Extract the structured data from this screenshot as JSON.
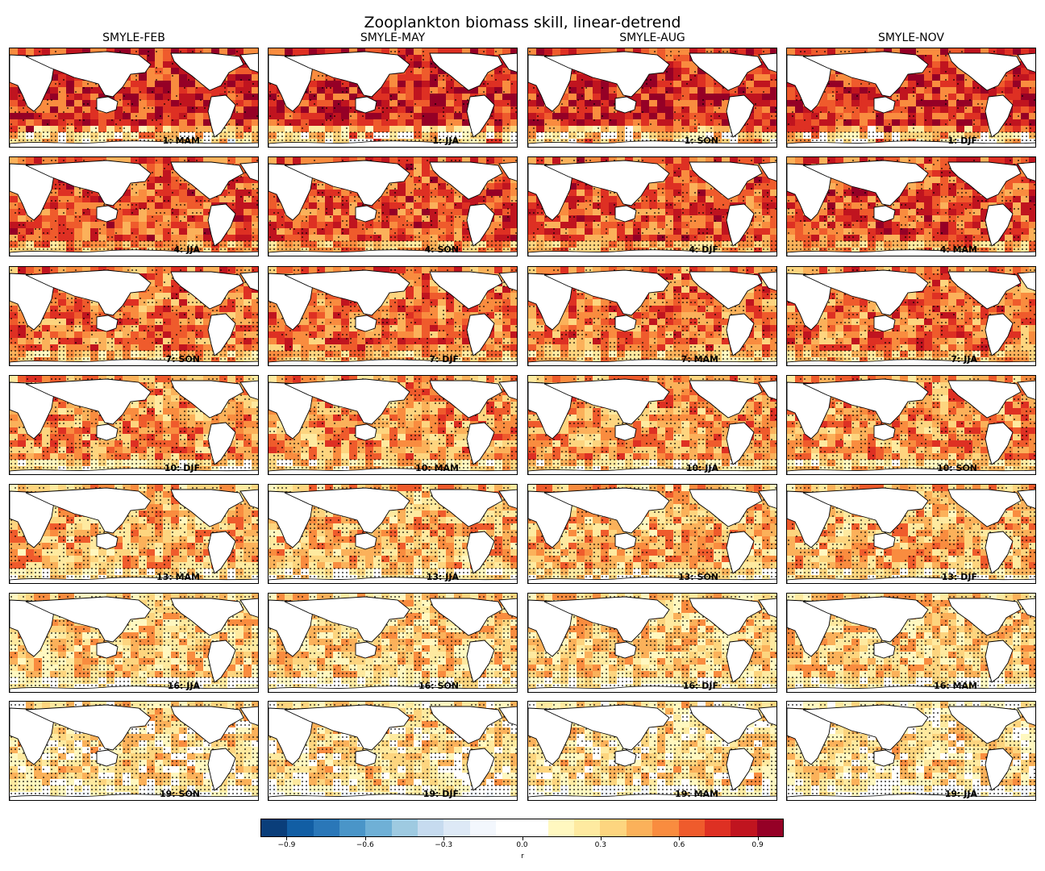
{
  "figure": {
    "title": "Zooplankton biomass skill, linear-detrend"
  },
  "columns": [
    "SMYLE-FEB",
    "SMYLE-MAY",
    "SMYLE-AUG",
    "SMYLE-NOV"
  ],
  "chart_data": {
    "type": "heatmap",
    "title": "Zooplankton biomass skill, linear-detrend",
    "description_variable": "r",
    "colorbar": {
      "label": "r",
      "vmin": -1.0,
      "vmax": 1.0,
      "levels": [
        -1.0,
        -0.9,
        -0.8,
        -0.7,
        -0.6,
        -0.5,
        -0.4,
        -0.3,
        -0.2,
        -0.1,
        0.0,
        0.1,
        0.2,
        0.3,
        0.4,
        0.5,
        0.6,
        0.7,
        0.8,
        0.9,
        1.0
      ],
      "colors": [
        "#0a3e7a",
        "#125ea4",
        "#2a77b8",
        "#4a95c8",
        "#6fb0d6",
        "#9ecae1",
        "#c6dbef",
        "#dde9f6",
        "#f3f7fd",
        "#ffffff",
        "#ffffff",
        "#fff8c0",
        "#feeaa0",
        "#fdd57f",
        "#fbb15a",
        "#f98c3f",
        "#ef5b2c",
        "#de3023",
        "#c0141f",
        "#950026"
      ],
      "ticks": [
        -0.9,
        -0.6,
        -0.3,
        0.0,
        0.3,
        0.6,
        0.9
      ],
      "tick_labels": [
        "−0.9",
        "−0.6",
        "−0.3",
        "0.0",
        "0.3",
        "0.6",
        "0.9"
      ]
    },
    "panels": [
      [
        "1: MAM",
        "1: JJA",
        "1: SON",
        "1: DJF"
      ],
      [
        "4: JJA",
        "4: SON",
        "4: DJF",
        "4: MAM"
      ],
      [
        "7: SON",
        "7: DJF",
        "7: MAM",
        "7: JJA"
      ],
      [
        "10: DJF",
        "10: MAM",
        "10: JJA",
        "10: SON"
      ],
      [
        "13: MAM",
        "13: JJA",
        "13: SON",
        "13: DJF"
      ],
      [
        "16: JJA",
        "16: SON",
        "16: DJF",
        "16: MAM"
      ],
      [
        "19: SON",
        "19: DJF",
        "19: MAM",
        "19: JJA"
      ]
    ],
    "stippling": "dots mark non-significant correlations"
  }
}
